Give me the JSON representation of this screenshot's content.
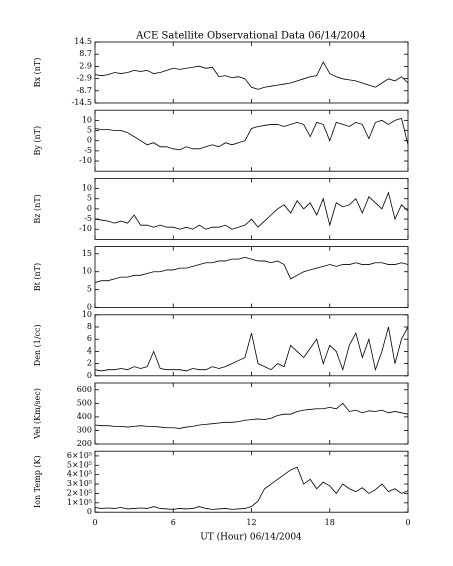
{
  "chart_data": [
    {
      "type": "line",
      "title": "ACE Satellite Observational Data   06/14/2004",
      "ylabel": "Bx (nT)",
      "color": "#000000",
      "ylim": [
        -14.5,
        14.5
      ],
      "yticks": [
        14.5,
        8.7,
        2.9,
        -2.9,
        -8.7,
        -14.5
      ],
      "x": [
        0,
        0.5,
        1,
        1.5,
        2,
        2.5,
        3,
        3.5,
        4,
        4.5,
        5,
        5.5,
        6,
        6.5,
        7,
        7.5,
        8,
        8.5,
        9,
        9.5,
        10,
        10.5,
        11,
        11.5,
        12,
        12.5,
        13,
        13.5,
        14,
        14.5,
        15,
        15.5,
        16,
        16.5,
        17,
        17.5,
        18,
        18.5,
        19,
        19.5,
        20,
        20.5,
        21,
        21.5,
        22,
        22.5,
        23,
        23.5,
        24
      ],
      "values": [
        -1,
        -1.5,
        -1,
        0,
        -0.5,
        0,
        1,
        0.5,
        1,
        -0.5,
        0,
        1,
        2,
        1.5,
        2,
        2.5,
        3,
        2,
        2.5,
        -2,
        -1.5,
        -2.5,
        -2,
        -3,
        -7,
        -8,
        -7,
        -6.5,
        -6,
        -5.5,
        -5,
        -4,
        -3,
        -2,
        -1.5,
        5,
        -0.5,
        -2,
        -3,
        -3.5,
        -4,
        -5,
        -6,
        -7,
        -5,
        -3,
        -4,
        -2,
        -5
      ]
    },
    {
      "type": "line",
      "ylabel": "By (nT)",
      "color": "#000000",
      "ylim": [
        -15,
        15
      ],
      "yticks": [
        10,
        5,
        0,
        -5,
        -10
      ],
      "x": [
        0,
        0.5,
        1,
        1.5,
        2,
        2.5,
        3,
        3.5,
        4,
        4.5,
        5,
        5.5,
        6,
        6.5,
        7,
        7.5,
        8,
        8.5,
        9,
        9.5,
        10,
        10.5,
        11,
        11.5,
        12,
        12.5,
        13,
        13.5,
        14,
        14.5,
        15,
        15.5,
        16,
        16.5,
        17,
        17.5,
        18,
        18.5,
        19,
        19.5,
        20,
        20.5,
        21,
        21.5,
        22,
        22.5,
        23,
        23.5,
        24
      ],
      "values": [
        6,
        5.5,
        5.5,
        5,
        5,
        4,
        2,
        0,
        -2,
        -1,
        -3,
        -3,
        -4,
        -4.5,
        -3,
        -4,
        -4,
        -3,
        -2,
        -3,
        -1,
        -2,
        -1,
        0,
        6,
        7,
        7.5,
        8,
        8,
        7,
        8,
        9,
        8,
        2,
        9,
        8,
        0,
        9,
        8,
        7,
        9,
        8,
        1,
        9,
        10,
        8,
        10,
        11,
        -2
      ]
    },
    {
      "type": "line",
      "ylabel": "Bz (nT)",
      "color": "#000000",
      "ylim": [
        -15,
        15
      ],
      "yticks": [
        10,
        5,
        0,
        -5,
        -10
      ],
      "x": [
        0,
        0.5,
        1,
        1.5,
        2,
        2.5,
        3,
        3.5,
        4,
        4.5,
        5,
        5.5,
        6,
        6.5,
        7,
        7.5,
        8,
        8.5,
        9,
        9.5,
        10,
        10.5,
        11,
        11.5,
        12,
        12.5,
        13,
        13.5,
        14,
        14.5,
        15,
        15.5,
        16,
        16.5,
        17,
        17.5,
        18,
        18.5,
        19,
        19.5,
        20,
        20.5,
        21,
        21.5,
        22,
        22.5,
        23,
        23.5,
        24
      ],
      "values": [
        -5,
        -5.5,
        -6,
        -7,
        -6,
        -7,
        -3,
        -8,
        -8,
        -9,
        -8,
        -9,
        -9,
        -10,
        -9,
        -10,
        -8,
        -10,
        -9,
        -9,
        -8,
        -10,
        -9,
        -8,
        -5,
        -9,
        -6,
        -3,
        0,
        2,
        -2,
        4,
        0,
        3,
        -3,
        5,
        -8,
        3,
        1,
        2,
        5,
        -2,
        6,
        3,
        0,
        8,
        -5,
        2,
        -1
      ]
    },
    {
      "type": "line",
      "ylabel": "Bt (nT)",
      "color": "#000000",
      "ylim": [
        0,
        17
      ],
      "yticks": [
        0,
        5,
        10,
        15
      ],
      "x": [
        0,
        0.5,
        1,
        1.5,
        2,
        2.5,
        3,
        3.5,
        4,
        4.5,
        5,
        5.5,
        6,
        6.5,
        7,
        7.5,
        8,
        8.5,
        9,
        9.5,
        10,
        10.5,
        11,
        11.5,
        12,
        12.5,
        13,
        13.5,
        14,
        14.5,
        15,
        15.5,
        16,
        16.5,
        17,
        17.5,
        18,
        18.5,
        19,
        19.5,
        20,
        20.5,
        21,
        21.5,
        22,
        22.5,
        23,
        23.5,
        24
      ],
      "values": [
        7,
        7.5,
        7.5,
        8,
        8.5,
        8.5,
        9,
        9,
        9.5,
        10,
        10,
        10.5,
        10.5,
        11,
        11,
        11.5,
        12,
        12.5,
        12.5,
        13,
        13,
        13.5,
        13.5,
        14,
        13.5,
        13,
        13,
        12.5,
        13,
        12,
        8,
        9,
        10,
        10.5,
        11,
        11.5,
        12,
        11.5,
        12,
        12,
        12.5,
        12,
        12,
        12.5,
        12.5,
        12,
        12,
        12.5,
        12
      ]
    },
    {
      "type": "line",
      "ylabel": "Den (1/cc)",
      "color": "#000000",
      "ylim": [
        0,
        10
      ],
      "yticks": [
        0,
        2,
        4,
        6,
        8,
        10
      ],
      "x": [
        0,
        0.5,
        1,
        1.5,
        2,
        2.5,
        3,
        3.5,
        4,
        4.5,
        5,
        5.5,
        6,
        6.5,
        7,
        7.5,
        8,
        8.5,
        9,
        9.5,
        10,
        10.5,
        11,
        11.5,
        12,
        12.5,
        13,
        13.5,
        14,
        14.5,
        15,
        15.5,
        16,
        16.5,
        17,
        17.5,
        18,
        18.5,
        19,
        19.5,
        20,
        20.5,
        21,
        21.5,
        22,
        22.5,
        23,
        23.5,
        24
      ],
      "values": [
        1,
        0.8,
        1,
        1,
        1.2,
        1,
        1.5,
        1.2,
        1.5,
        4,
        1.2,
        1,
        1,
        1,
        0.8,
        1.2,
        1,
        1,
        1.5,
        1.2,
        1.5,
        2,
        2.5,
        3,
        7,
        2,
        1.5,
        1,
        2,
        1.5,
        5,
        4,
        3,
        4.5,
        6,
        2,
        5,
        4,
        1,
        5,
        7,
        3,
        6,
        1,
        4,
        8,
        2,
        6,
        8
      ]
    },
    {
      "type": "line",
      "ylabel": "Vel (Km/sec)",
      "color": "#000000",
      "ylim": [
        200,
        650
      ],
      "yticks": [
        200,
        300,
        400,
        500,
        600
      ],
      "x": [
        0,
        0.5,
        1,
        1.5,
        2,
        2.5,
        3,
        3.5,
        4,
        4.5,
        5,
        5.5,
        6,
        6.5,
        7,
        7.5,
        8,
        8.5,
        9,
        9.5,
        10,
        10.5,
        11,
        11.5,
        12,
        12.5,
        13,
        13.5,
        14,
        14.5,
        15,
        15.5,
        16,
        16.5,
        17,
        17.5,
        18,
        18.5,
        19,
        19.5,
        20,
        20.5,
        21,
        21.5,
        22,
        22.5,
        23,
        23.5,
        24
      ],
      "values": [
        340,
        335,
        335,
        330,
        330,
        325,
        330,
        335,
        330,
        330,
        325,
        320,
        320,
        315,
        325,
        330,
        340,
        345,
        350,
        355,
        360,
        360,
        365,
        375,
        380,
        385,
        380,
        390,
        410,
        420,
        420,
        440,
        450,
        455,
        460,
        460,
        470,
        460,
        500,
        440,
        450,
        430,
        445,
        440,
        450,
        430,
        440,
        430,
        420
      ]
    },
    {
      "type": "line",
      "ylabel": "Ion Temp (K)",
      "xlabel": "UT (Hour)   06/14/2004",
      "color": "#000000",
      "ylim": [
        0,
        650000
      ],
      "yticks": [
        0,
        {
          "value": 100000,
          "label": "1×10⁵"
        },
        {
          "value": 200000,
          "label": "2×10⁵"
        },
        {
          "value": 300000,
          "label": "3×10⁵"
        },
        {
          "value": 400000,
          "label": "4×10⁵"
        },
        {
          "value": 500000,
          "label": "5×10⁵"
        },
        {
          "value": 600000,
          "label": "6×10⁵"
        }
      ],
      "xlim": [
        0,
        24
      ],
      "xticks": [
        0,
        6,
        12,
        18,
        {
          "value": 24,
          "label": "0"
        }
      ],
      "x": [
        0,
        0.5,
        1,
        1.5,
        2,
        2.5,
        3,
        3.5,
        4,
        4.5,
        5,
        5.5,
        6,
        6.5,
        7,
        7.5,
        8,
        8.5,
        9,
        9.5,
        10,
        10.5,
        11,
        11.5,
        12,
        12.5,
        13,
        13.5,
        14,
        14.5,
        15,
        15.5,
        16,
        16.5,
        17,
        17.5,
        18,
        18.5,
        19,
        19.5,
        20,
        20.5,
        21,
        21.5,
        22,
        22.5,
        23,
        23.5,
        24
      ],
      "values": [
        50000,
        40000,
        45000,
        40000,
        50000,
        35000,
        40000,
        45000,
        40000,
        60000,
        40000,
        35000,
        30000,
        40000,
        35000,
        40000,
        60000,
        40000,
        30000,
        35000,
        40000,
        30000,
        35000,
        40000,
        60000,
        120000,
        250000,
        300000,
        350000,
        400000,
        450000,
        480000,
        300000,
        350000,
        250000,
        320000,
        280000,
        200000,
        300000,
        250000,
        220000,
        260000,
        200000,
        240000,
        300000,
        220000,
        250000,
        200000,
        230000
      ]
    }
  ]
}
